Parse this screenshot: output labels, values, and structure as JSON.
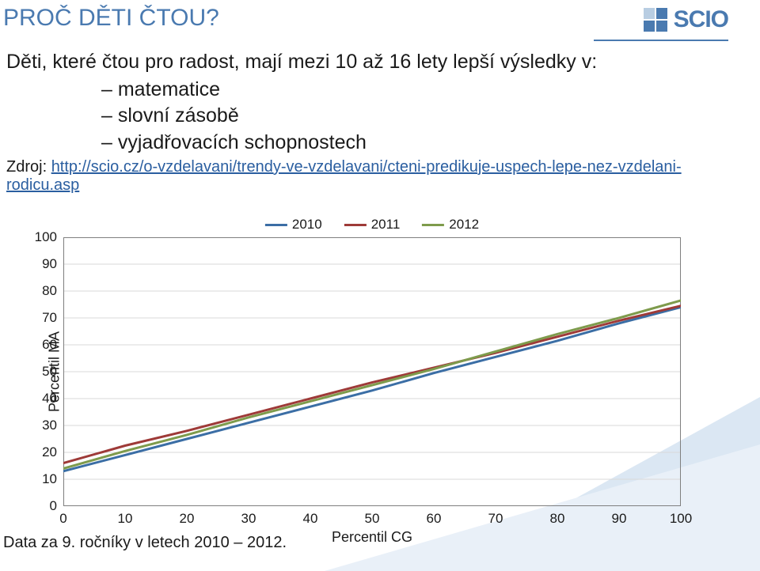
{
  "page_title": "PROČ DĚTI ČTOU?",
  "logo_text": "SCIO",
  "intro": {
    "line": "Děti, které čtou pro radost, mají mezi 10 až 16 lety lepší výsledky v:",
    "bullets": [
      "matematice",
      "slovní zásobě",
      "vyjadřovacích schopnostech"
    ],
    "source_prefix": "Zdroj: ",
    "source_link": "http://scio.cz/o-vzdelavani/trendy-ve-vzdelavani/cteni-predikuje-uspech-lepe-nez-vzdelani-rodicu.asp"
  },
  "chart": {
    "type": "line",
    "background_color": "#ffffff",
    "plot_border_color": "#7f7f7f",
    "grid_color": "#d9d9d9",
    "xlim": [
      0,
      100
    ],
    "ylim": [
      0,
      100
    ],
    "xticks": [
      0,
      10,
      20,
      30,
      40,
      50,
      60,
      70,
      80,
      90,
      100
    ],
    "yticks": [
      0,
      10,
      20,
      30,
      40,
      50,
      60,
      70,
      80,
      90,
      100
    ],
    "xlabel": "Percentil CG",
    "ylabel": "Percentil MA",
    "xlabel_fontsize": 18,
    "ylabel_fontsize": 18,
    "tick_fontsize": 17,
    "legend": {
      "position": "top-center",
      "items": [
        {
          "label": "2010",
          "color": "#3b6ea5"
        },
        {
          "label": "2011",
          "color": "#9e3a38"
        },
        {
          "label": "2012",
          "color": "#7e9b4c"
        }
      ]
    },
    "series": [
      {
        "name": "2010",
        "color": "#3b6ea5",
        "width": 3,
        "points": [
          [
            0,
            13
          ],
          [
            10,
            19
          ],
          [
            20,
            25
          ],
          [
            30,
            31
          ],
          [
            40,
            37
          ],
          [
            50,
            43
          ],
          [
            60,
            49.5
          ],
          [
            70,
            55.5
          ],
          [
            80,
            61.5
          ],
          [
            90,
            68
          ],
          [
            100,
            74
          ]
        ]
      },
      {
        "name": "2011",
        "color": "#9e3a38",
        "width": 3,
        "points": [
          [
            0,
            16
          ],
          [
            10,
            22.5
          ],
          [
            20,
            28
          ],
          [
            30,
            34
          ],
          [
            40,
            40
          ],
          [
            50,
            46
          ],
          [
            60,
            51.5
          ],
          [
            70,
            57
          ],
          [
            80,
            63
          ],
          [
            90,
            69
          ],
          [
            100,
            74.5
          ]
        ]
      },
      {
        "name": "2012",
        "color": "#7e9b4c",
        "width": 3,
        "points": [
          [
            0,
            14
          ],
          [
            10,
            20.5
          ],
          [
            20,
            26.5
          ],
          [
            30,
            33
          ],
          [
            40,
            39
          ],
          [
            50,
            45
          ],
          [
            60,
            51
          ],
          [
            70,
            57.5
          ],
          [
            80,
            64
          ],
          [
            90,
            70
          ],
          [
            100,
            76.5
          ]
        ]
      }
    ]
  },
  "footer_note": "Data za 9. ročníky v letech 2010 – 2012.",
  "bg_triangles": {
    "colors": [
      "#dbe7f3",
      "#e9f0f8"
    ],
    "points": [
      [
        [
          600,
          0
        ],
        [
          600,
          220
        ],
        [
          200,
          220
        ]
      ],
      [
        [
          600,
          60
        ],
        [
          600,
          220
        ],
        [
          50,
          220
        ]
      ]
    ]
  }
}
